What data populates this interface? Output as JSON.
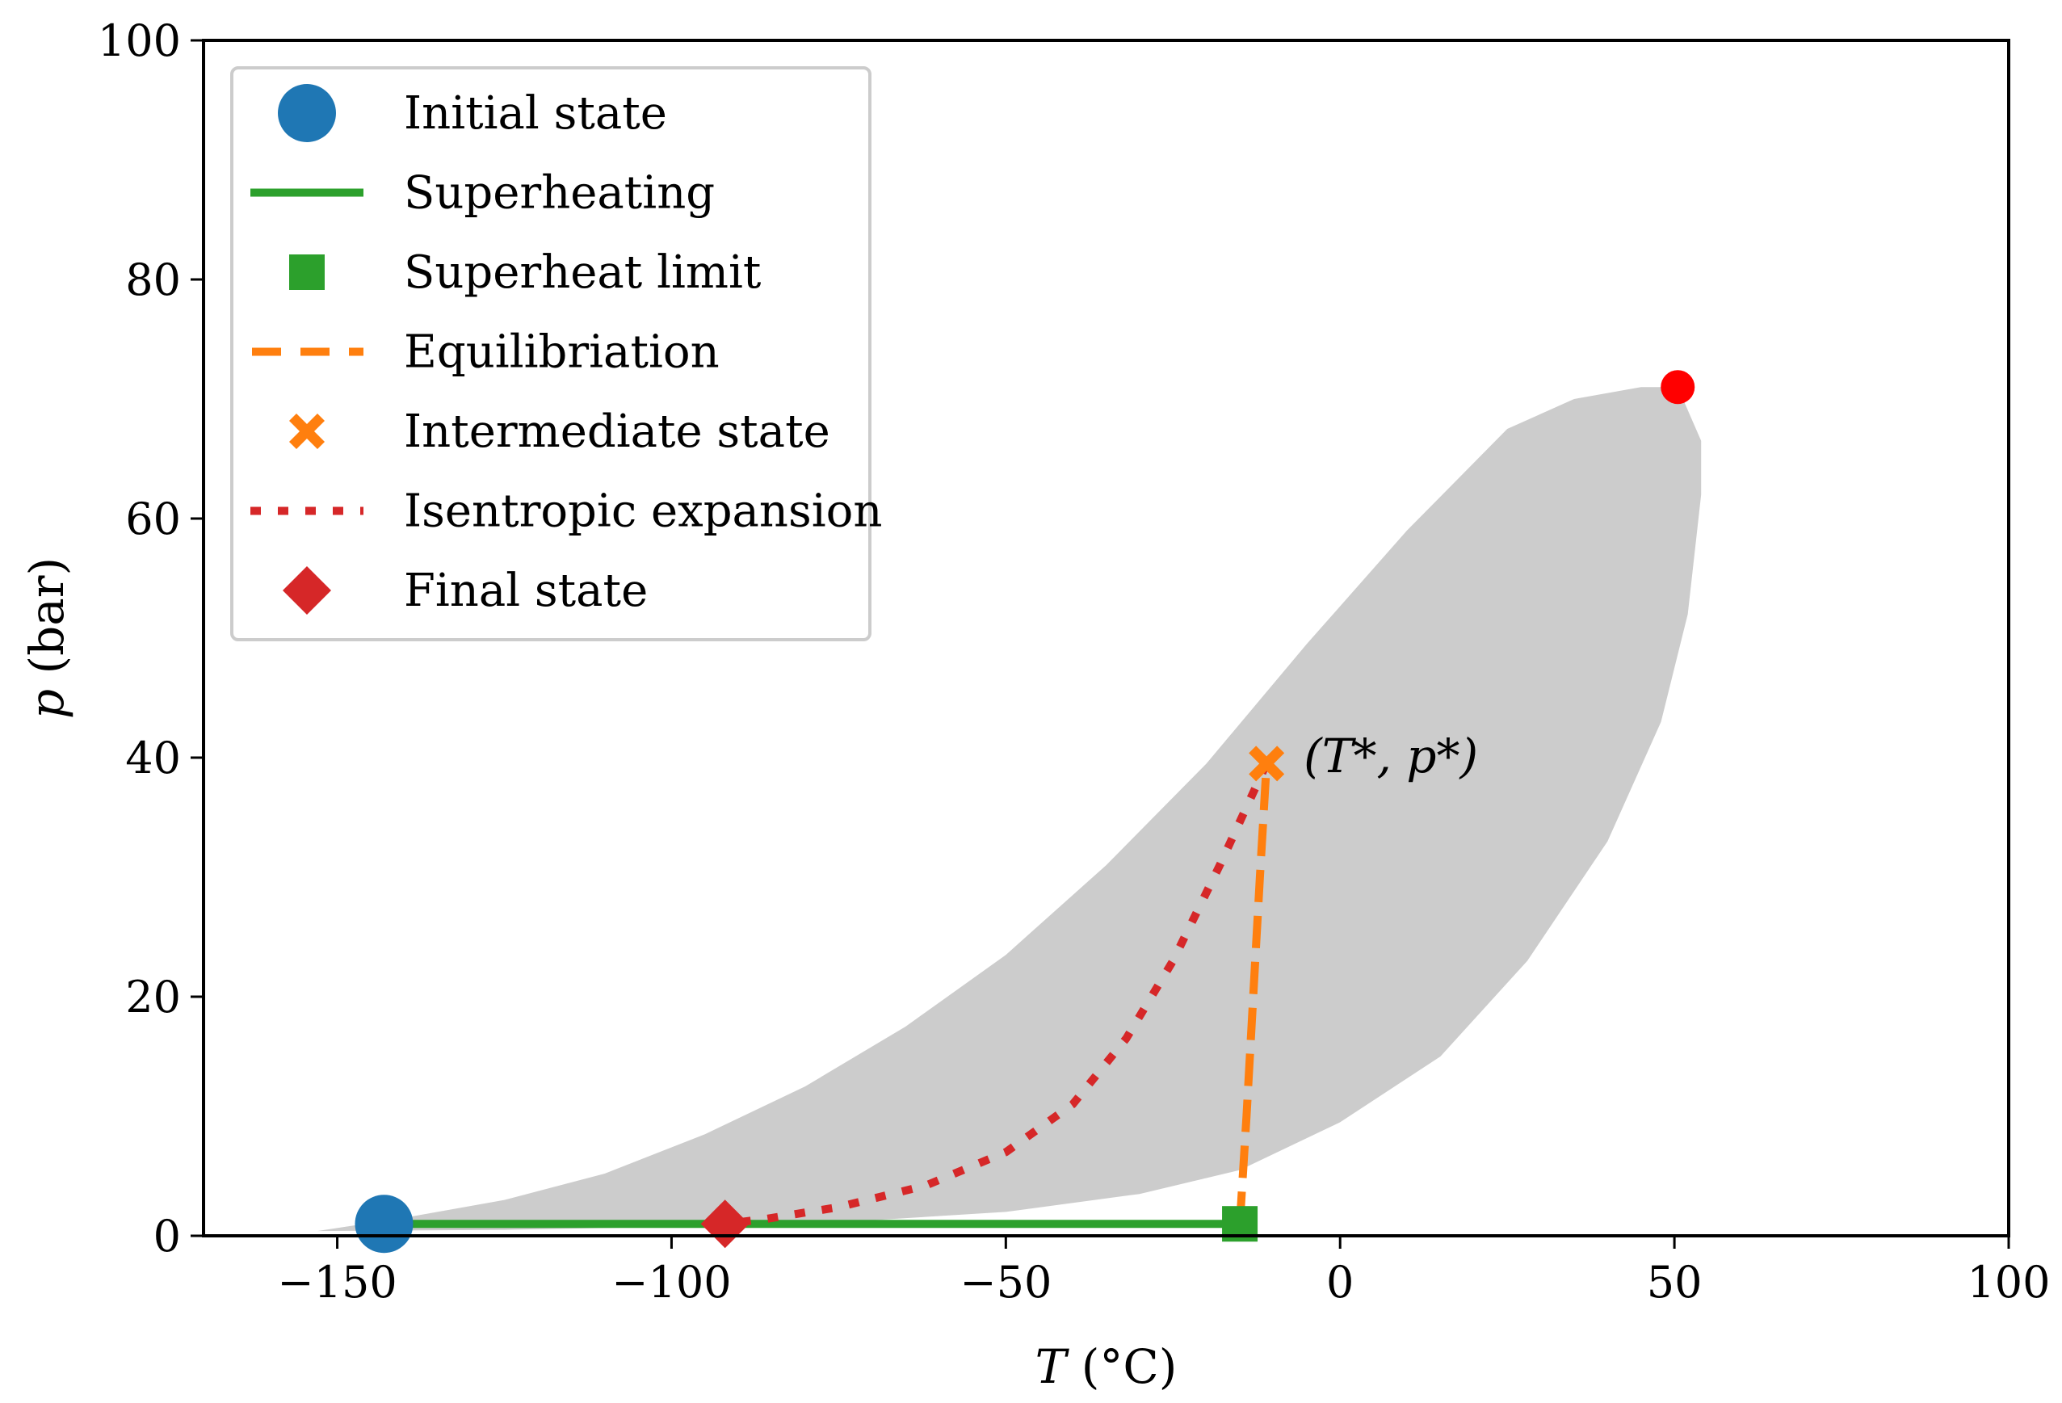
{
  "chart_data": {
    "type": "line",
    "xlabel": {
      "symbol": "T",
      "unit": " (°C)"
    },
    "ylabel": {
      "symbol": "p",
      "unit": " (bar)"
    },
    "xlim": [
      -170,
      100
    ],
    "ylim": [
      0,
      100
    ],
    "xticks": [
      -150,
      -100,
      -50,
      0,
      50,
      100
    ],
    "xtick_labels": [
      "−150",
      "−100",
      "−50",
      "0",
      "50",
      "100"
    ],
    "yticks": [
      0,
      20,
      40,
      60,
      80,
      100
    ],
    "ytick_labels": [
      "0",
      "20",
      "40",
      "60",
      "80",
      "100"
    ],
    "grid": false,
    "legend_position": "top-left",
    "two_phase_region": {
      "color": "#cccccc",
      "upper_boundary": [
        [
          -153,
          0.4
        ],
        [
          -140,
          1.5
        ],
        [
          -125,
          3
        ],
        [
          -110,
          5.2
        ],
        [
          -95,
          8.5
        ],
        [
          -80,
          12.5
        ],
        [
          -65,
          17.5
        ],
        [
          -50,
          23.5
        ],
        [
          -35,
          31
        ],
        [
          -20,
          39.5
        ],
        [
          -5,
          49.5
        ],
        [
          10,
          59
        ],
        [
          25,
          67.5
        ],
        [
          35,
          70
        ],
        [
          45,
          71
        ],
        [
          50.5,
          71
        ]
      ],
      "lower_boundary": [
        [
          54,
          66.5
        ],
        [
          54,
          62
        ],
        [
          52,
          52
        ],
        [
          48,
          43
        ],
        [
          40,
          33
        ],
        [
          28,
          23
        ],
        [
          15,
          15
        ],
        [
          0,
          9.5
        ],
        [
          -15,
          5.5
        ],
        [
          -30,
          3.5
        ],
        [
          -50,
          2
        ],
        [
          -70,
          1.3
        ],
        [
          -95,
          0.8
        ],
        [
          -125,
          0.5
        ],
        [
          -153,
          0.4
        ]
      ]
    },
    "critical_point": {
      "x": 50.5,
      "y": 71,
      "color": "#ff0000"
    },
    "series": [
      {
        "name": "Initial state",
        "kind": "marker",
        "marker": "circle",
        "color": "#1f77b4",
        "points": [
          [
            -143,
            1
          ]
        ]
      },
      {
        "name": "Superheating",
        "kind": "line",
        "style": "solid",
        "color": "#2ca02c",
        "points": [
          [
            -143,
            1
          ],
          [
            -15,
            1
          ]
        ]
      },
      {
        "name": "Superheat limit",
        "kind": "marker",
        "marker": "square",
        "color": "#2ca02c",
        "points": [
          [
            -15,
            1
          ]
        ]
      },
      {
        "name": "Equilibriation",
        "kind": "line",
        "style": "dashed",
        "color": "#ff7f0e",
        "points": [
          [
            -15,
            1
          ],
          [
            -14,
            10
          ],
          [
            -13,
            20
          ],
          [
            -12,
            30
          ],
          [
            -11,
            39.5
          ]
        ]
      },
      {
        "name": "Intermediate state",
        "kind": "marker",
        "marker": "x",
        "color": "#ff7f0e",
        "points": [
          [
            -11,
            39.5
          ]
        ]
      },
      {
        "name": "Isentropic expansion",
        "kind": "line",
        "style": "dotted",
        "color": "#d62728",
        "points": [
          [
            -11,
            39.5
          ],
          [
            -18,
            31
          ],
          [
            -25,
            23
          ],
          [
            -32,
            16.5
          ],
          [
            -40,
            11
          ],
          [
            -50,
            7
          ],
          [
            -62,
            4.2
          ],
          [
            -75,
            2.4
          ],
          [
            -86,
            1.4
          ],
          [
            -92,
            1
          ]
        ]
      },
      {
        "name": "Final state",
        "kind": "marker",
        "marker": "diamond",
        "color": "#d62728",
        "points": [
          [
            -92,
            1
          ]
        ]
      }
    ],
    "annotations": [
      {
        "text": "(T*, p*)",
        "x": -11,
        "y": 40
      }
    ]
  }
}
